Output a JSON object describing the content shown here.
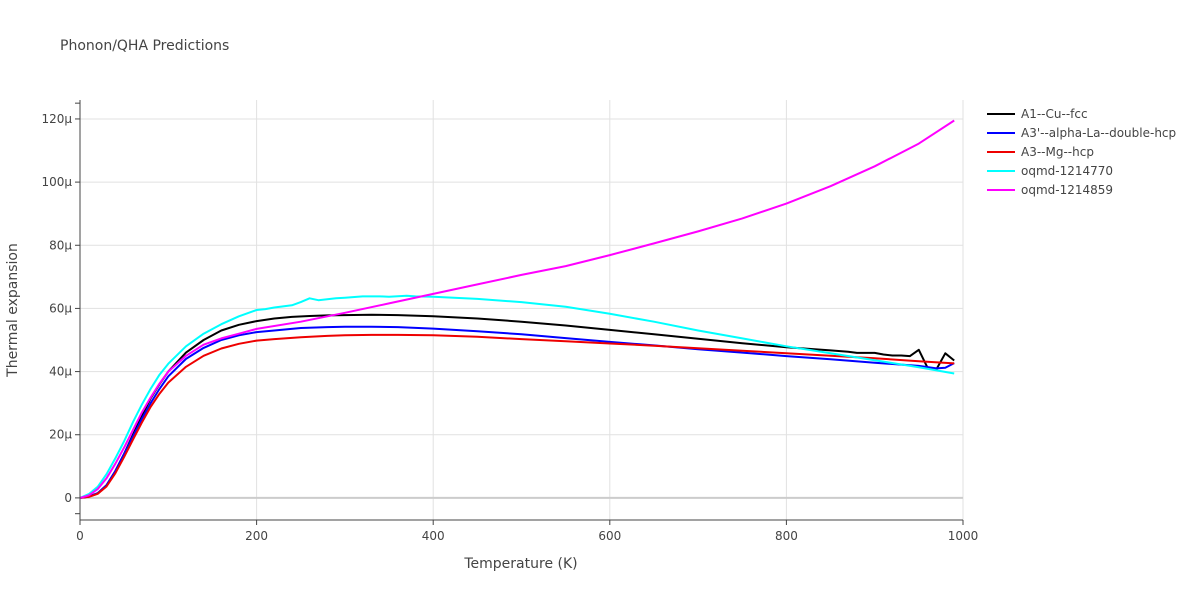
{
  "chart_data": {
    "type": "line",
    "title": "Phonon/QHA Predictions",
    "xlabel": "Temperature (K)",
    "ylabel": "Thermal expansion",
    "xlim": [
      0,
      1000
    ],
    "ylim": [
      -7,
      126
    ],
    "x_ticks": [
      0,
      200,
      400,
      600,
      800,
      1000
    ],
    "x_tick_labels": [
      "0",
      "200",
      "400",
      "600",
      "800",
      "1000"
    ],
    "y_ticks": [
      0,
      20,
      40,
      60,
      80,
      100,
      120
    ],
    "y_tick_labels": [
      "0",
      "20μ",
      "40μ",
      "60μ",
      "80μ",
      "100μ",
      "120μ"
    ],
    "y_unit": "μ (×1e-6 K⁻¹)",
    "grid": true,
    "legend_position": "top-right, outside plot",
    "series": [
      {
        "name": "A1--Cu--fcc",
        "color": "#000000",
        "x": [
          0,
          10,
          20,
          30,
          40,
          50,
          60,
          70,
          80,
          90,
          100,
          120,
          140,
          160,
          180,
          200,
          220,
          240,
          260,
          280,
          300,
          330,
          360,
          400,
          450,
          500,
          550,
          600,
          650,
          700,
          750,
          800,
          850,
          870,
          880,
          900,
          910,
          920,
          930,
          940,
          950,
          960,
          970,
          980,
          990
        ],
        "y": [
          0,
          0.4,
          1.5,
          4,
          8.5,
          14,
          20,
          26,
          31.5,
          36,
          40,
          46,
          50,
          53,
          54.8,
          56,
          56.8,
          57.3,
          57.6,
          57.8,
          57.9,
          58.0,
          57.9,
          57.5,
          56.8,
          55.8,
          54.6,
          53.2,
          51.8,
          50.4,
          49.0,
          47.7,
          46.7,
          46.3,
          45.9,
          45.9,
          45.4,
          45.1,
          45.1,
          44.9,
          46.9,
          41.1,
          40.8,
          45.8,
          43.5
        ]
      },
      {
        "name": "A3'--alpha-La--double-hcp",
        "color": "#0000ff",
        "x": [
          0,
          10,
          20,
          30,
          40,
          50,
          60,
          70,
          80,
          90,
          100,
          120,
          140,
          160,
          180,
          200,
          220,
          250,
          280,
          300,
          330,
          360,
          400,
          450,
          500,
          550,
          600,
          650,
          700,
          750,
          800,
          850,
          900,
          950,
          970,
          980,
          990
        ],
        "y": [
          0,
          0.4,
          1.5,
          4,
          8.5,
          14,
          19.5,
          25,
          30,
          34.5,
          38.5,
          44,
          47.5,
          50,
          51.5,
          52.5,
          53,
          53.8,
          54.1,
          54.2,
          54.2,
          54.1,
          53.6,
          52.8,
          51.8,
          50.6,
          49.4,
          48.3,
          47.1,
          46.0,
          44.9,
          43.9,
          42.8,
          41.8,
          41.0,
          41.2,
          42.7
        ]
      },
      {
        "name": "A3--Mg--hcp",
        "color": "#ee0000",
        "x": [
          0,
          10,
          20,
          30,
          40,
          50,
          60,
          70,
          80,
          90,
          100,
          120,
          140,
          160,
          180,
          200,
          220,
          250,
          280,
          300,
          330,
          360,
          400,
          450,
          500,
          550,
          600,
          650,
          700,
          750,
          800,
          850,
          900,
          950,
          990
        ],
        "y": [
          0,
          0.3,
          1.3,
          3.6,
          7.8,
          13,
          18.5,
          23.8,
          28.8,
          33,
          36.5,
          41.5,
          45,
          47.3,
          48.8,
          49.8,
          50.3,
          50.9,
          51.3,
          51.5,
          51.6,
          51.6,
          51.5,
          51.0,
          50.3,
          49.6,
          48.9,
          48.2,
          47.4,
          46.6,
          45.8,
          45.0,
          44.2,
          43.3,
          42.6
        ]
      },
      {
        "name": "oqmd-1214770",
        "color": "#00ffff",
        "x": [
          0,
          10,
          20,
          30,
          40,
          50,
          60,
          70,
          80,
          90,
          100,
          120,
          140,
          160,
          180,
          200,
          210,
          220,
          240,
          250,
          260,
          270,
          280,
          290,
          300,
          320,
          340,
          350,
          370,
          380,
          400,
          450,
          500,
          550,
          600,
          650,
          700,
          750,
          800,
          850,
          900,
          950,
          990
        ],
        "y": [
          0,
          1.2,
          3.5,
          7.5,
          12.5,
          18,
          24,
          29.5,
          34.5,
          39,
          42.5,
          48,
          52,
          55,
          57.5,
          59.5,
          59.8,
          60.3,
          61.0,
          62.0,
          63.2,
          62.6,
          62.9,
          63.2,
          63.4,
          63.8,
          63.8,
          63.7,
          64.0,
          63.8,
          63.7,
          63.0,
          62.0,
          60.5,
          58.3,
          55.8,
          53.0,
          50.5,
          48.0,
          45.8,
          43.6,
          41.4,
          39.4
        ]
      },
      {
        "name": "oqmd-1214859",
        "color": "#ff00ff",
        "x": [
          0,
          10,
          20,
          30,
          40,
          50,
          60,
          70,
          80,
          90,
          100,
          120,
          140,
          160,
          180,
          200,
          250,
          300,
          350,
          400,
          450,
          500,
          550,
          600,
          650,
          700,
          750,
          800,
          850,
          900,
          950,
          990
        ],
        "y": [
          0,
          0.8,
          2.8,
          6.2,
          10.8,
          16,
          21.5,
          27,
          31.8,
          36.2,
          40,
          45,
          48.5,
          50.5,
          52,
          53.5,
          55.8,
          58.6,
          61.6,
          64.6,
          67.6,
          70.6,
          73.4,
          76.9,
          80.6,
          84.4,
          88.5,
          93.2,
          98.7,
          105.0,
          112.2,
          119.5
        ]
      }
    ]
  }
}
